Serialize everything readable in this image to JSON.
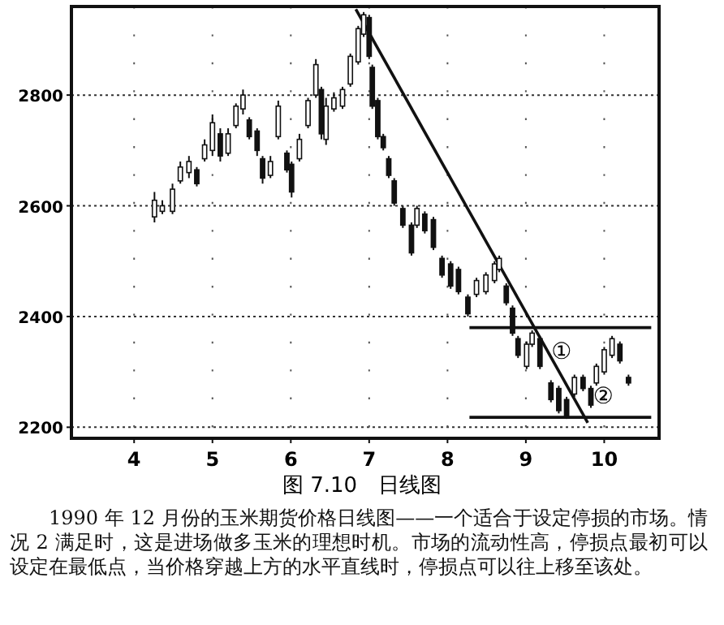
{
  "chart_data": {
    "type": "candlestick",
    "title": "图 7.10　日线图",
    "color": "#111111",
    "x": [
      4.26,
      4.36,
      4.49,
      4.59,
      4.7,
      4.8,
      4.9,
      5.0,
      5.1,
      5.2,
      5.3,
      5.39,
      5.47,
      5.57,
      5.64,
      5.74,
      5.84,
      5.95,
      6.01,
      6.11,
      6.22,
      6.32,
      6.39,
      6.45,
      6.55,
      6.66,
      6.76,
      6.86,
      6.93,
      7.0,
      7.04,
      7.11,
      7.18,
      7.25,
      7.32,
      7.43,
      7.54,
      7.61,
      7.71,
      7.82,
      7.93,
      8.04,
      8.14,
      8.26,
      8.37,
      8.49,
      8.6,
      8.66,
      8.75,
      8.83,
      8.9,
      9.01,
      9.08,
      9.18,
      9.32,
      9.42,
      9.52,
      9.62,
      9.73,
      9.83,
      9.9,
      10.0,
      10.1,
      10.2,
      10.31
    ],
    "ohlc": [
      [
        2580,
        2625,
        2570,
        2610
      ],
      [
        2590,
        2610,
        2585,
        2600
      ],
      [
        2590,
        2640,
        2585,
        2630
      ],
      [
        2645,
        2680,
        2640,
        2670
      ],
      [
        2660,
        2690,
        2650,
        2680
      ],
      [
        2665,
        2670,
        2635,
        2640
      ],
      [
        2685,
        2720,
        2680,
        2710
      ],
      [
        2700,
        2765,
        2690,
        2750
      ],
      [
        2730,
        2740,
        2680,
        2690
      ],
      [
        2695,
        2740,
        2690,
        2730
      ],
      [
        2745,
        2785,
        2740,
        2780
      ],
      [
        2775,
        2810,
        2765,
        2800
      ],
      [
        2755,
        2760,
        2720,
        2725
      ],
      [
        2735,
        2740,
        2690,
        2700
      ],
      [
        2685,
        2690,
        2640,
        2650
      ],
      [
        2655,
        2690,
        2650,
        2680
      ],
      [
        2725,
        2790,
        2720,
        2780
      ],
      [
        2695,
        2700,
        2660,
        2665
      ],
      [
        2675,
        2680,
        2615,
        2625
      ],
      [
        2685,
        2730,
        2680,
        2720
      ],
      [
        2745,
        2795,
        2740,
        2790
      ],
      [
        2800,
        2865,
        2795,
        2855
      ],
      [
        2810,
        2815,
        2720,
        2730
      ],
      [
        2720,
        2795,
        2710,
        2780
      ],
      [
        2775,
        2805,
        2770,
        2795
      ],
      [
        2780,
        2815,
        2775,
        2810
      ],
      [
        2820,
        2875,
        2815,
        2870
      ],
      [
        2860,
        2925,
        2855,
        2920
      ],
      [
        2910,
        2950,
        2905,
        2945
      ],
      [
        2940,
        2945,
        2865,
        2870
      ],
      [
        2850,
        2855,
        2775,
        2780
      ],
      [
        2790,
        2795,
        2720,
        2725
      ],
      [
        2725,
        2730,
        2700,
        2705
      ],
      [
        2685,
        2690,
        2650,
        2655
      ],
      [
        2645,
        2650,
        2600,
        2605
      ],
      [
        2595,
        2600,
        2560,
        2565
      ],
      [
        2565,
        2570,
        2510,
        2515
      ],
      [
        2565,
        2600,
        2560,
        2595
      ],
      [
        2585,
        2590,
        2550,
        2555
      ],
      [
        2575,
        2580,
        2520,
        2525
      ],
      [
        2505,
        2510,
        2470,
        2475
      ],
      [
        2495,
        2500,
        2450,
        2455
      ],
      [
        2485,
        2490,
        2440,
        2445
      ],
      [
        2435,
        2440,
        2400,
        2405
      ],
      [
        2440,
        2470,
        2435,
        2465
      ],
      [
        2445,
        2480,
        2440,
        2475
      ],
      [
        2465,
        2500,
        2460,
        2495
      ],
      [
        2485,
        2510,
        2480,
        2505
      ],
      [
        2455,
        2460,
        2420,
        2425
      ],
      [
        2415,
        2420,
        2365,
        2370
      ],
      [
        2360,
        2365,
        2325,
        2330
      ],
      [
        2310,
        2355,
        2305,
        2350
      ],
      [
        2350,
        2375,
        2345,
        2370
      ],
      [
        2360,
        2365,
        2305,
        2310
      ],
      [
        2280,
        2285,
        2245,
        2250
      ],
      [
        2270,
        2275,
        2225,
        2230
      ],
      [
        2250,
        2255,
        2215,
        2220
      ],
      [
        2260,
        2295,
        2255,
        2290
      ],
      [
        2290,
        2295,
        2265,
        2270
      ],
      [
        2270,
        2275,
        2235,
        2240
      ],
      [
        2280,
        2315,
        2275,
        2310
      ],
      [
        2300,
        2345,
        2295,
        2340
      ],
      [
        2330,
        2365,
        2325,
        2360
      ],
      [
        2350,
        2355,
        2315,
        2320
      ],
      [
        2290,
        2295,
        2275,
        2280
      ]
    ],
    "series": [
      {
        "type": "line",
        "color": "#111111",
        "x": [
          6.83,
          9.79
        ],
        "values": [
          2955,
          2208
        ]
      },
      {
        "type": "line",
        "color": "#111111",
        "x": [
          8.28,
          10.6
        ],
        "values": [
          2380,
          2380
        ]
      },
      {
        "type": "line",
        "color": "#111111",
        "x": [
          8.28,
          10.6
        ],
        "values": [
          2218,
          2218
        ]
      }
    ],
    "xlim": [
      3.2,
      10.7
    ],
    "xticks": [
      4,
      5,
      6,
      7,
      8,
      9,
      10
    ],
    "ylim": [
      2180,
      2960
    ],
    "yticks": [
      2200,
      2400,
      2600,
      2800
    ],
    "grid": true,
    "annotations": [
      "①",
      "②",
      "1990 年 12 月份的玉米期货价格日线图——一个适合于设定停损的市场。情况 2 满足时，这是进场做多玉米的理想时机。市场的流动性高，停损点最初可以设定在最低点，当价格穿越上方的水平直线时，停损点可以往上移至该处。"
    ]
  }
}
